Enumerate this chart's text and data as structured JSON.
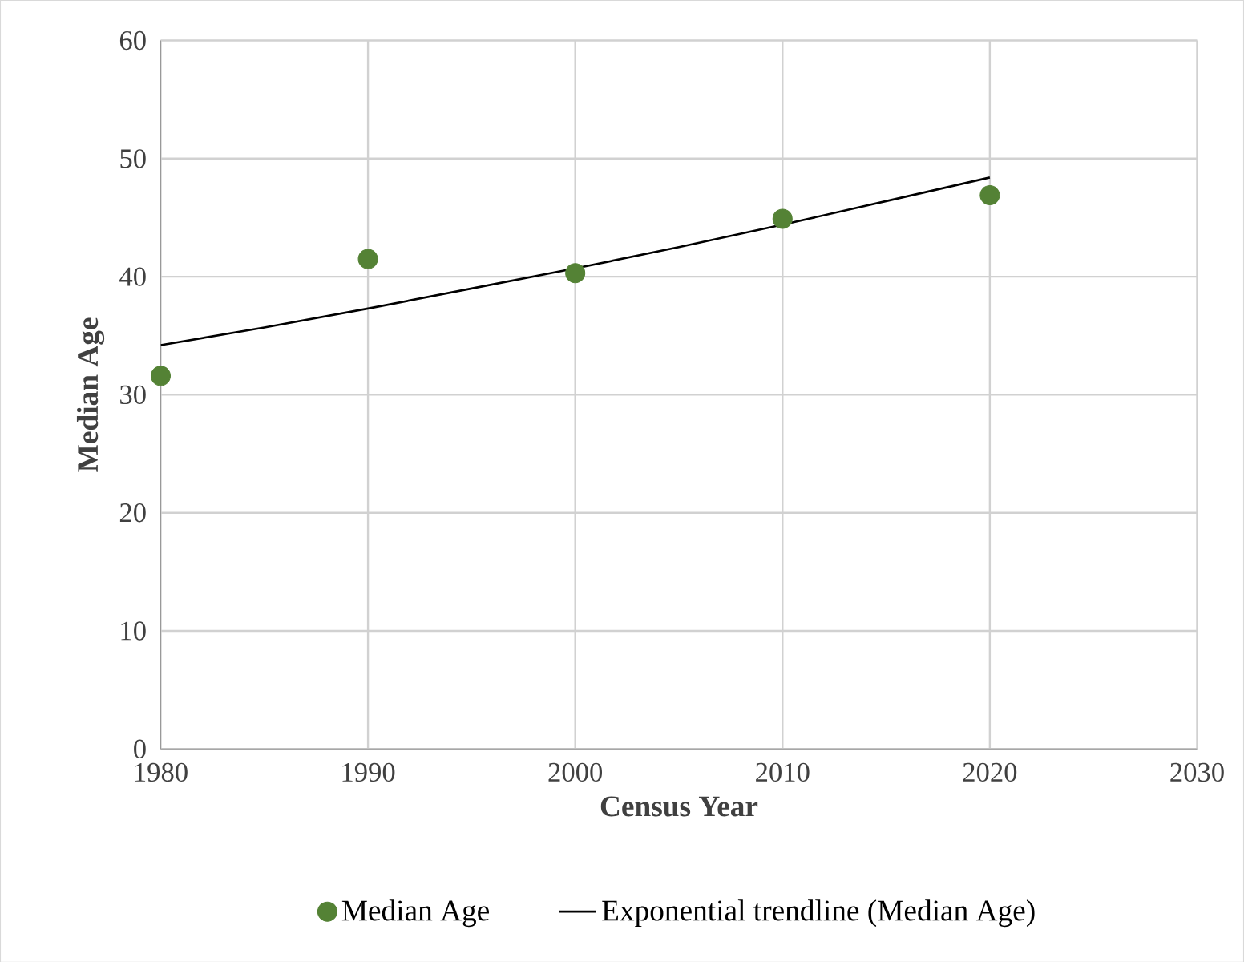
{
  "chart_data": {
    "type": "scatter",
    "xlabel": "Census Year",
    "ylabel": "Median Age",
    "x": [
      1980,
      1990,
      2000,
      2010,
      2020
    ],
    "series": [
      {
        "name": "Median Age",
        "color": "#548235",
        "marker": "circle",
        "values": [
          31.6,
          41.5,
          40.3,
          44.9,
          46.9
        ]
      },
      {
        "name": "Exponential trendline (Median Age)",
        "type": "line",
        "color": "#000000",
        "marker": "none",
        "x": [
          1980,
          1985,
          1990,
          1995,
          2000,
          2005,
          2010,
          2015,
          2020
        ],
        "values": [
          34.2,
          35.7,
          37.3,
          39.0,
          40.7,
          42.5,
          44.4,
          46.4,
          48.4
        ]
      }
    ],
    "xlim": [
      1980,
      2030
    ],
    "xticks": [
      1980,
      1990,
      2000,
      2010,
      2020,
      2030
    ],
    "ylim": [
      0,
      60
    ],
    "yticks": [
      0,
      10,
      20,
      30,
      40,
      50,
      60
    ],
    "grid": true,
    "legend": "bottom"
  }
}
